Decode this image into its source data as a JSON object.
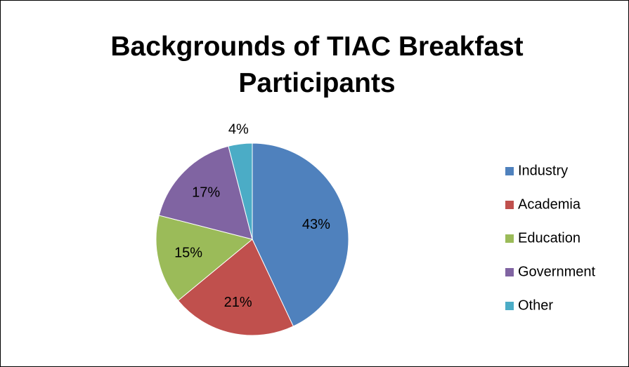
{
  "chart_data": {
    "type": "pie",
    "title": "Backgrounds of TIAC Breakfast Participants",
    "categories": [
      "Industry",
      "Academia",
      "Education",
      "Government",
      "Other"
    ],
    "values": [
      43,
      21,
      15,
      17,
      4
    ],
    "value_labels": [
      "43%",
      "21%",
      "15%",
      "17%",
      "4%"
    ],
    "colors": [
      "#4f81bd",
      "#c0504d",
      "#9bbb59",
      "#8064a2",
      "#4bacc6"
    ],
    "legend": "right"
  }
}
